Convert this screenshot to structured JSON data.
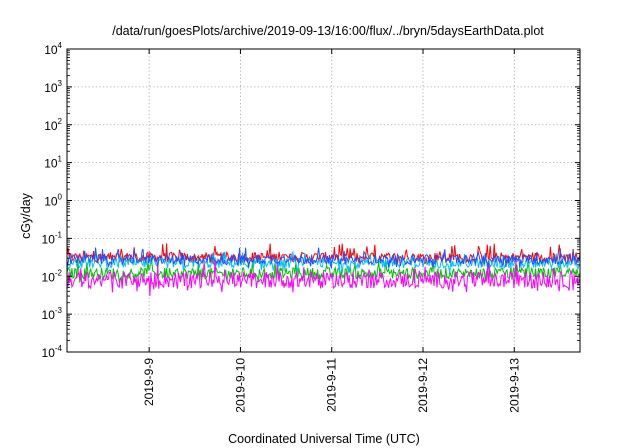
{
  "chart_data": {
    "type": "line",
    "title": "/data/run/goesPlots/archive/2019-09-13/16:00/flux/../bryn/5daysEarthData.plot",
    "xlabel": "Coordinated Universal Time (UTC)",
    "ylabel": "cGy/day",
    "yscale": "log",
    "ylim": [
      0.0001,
      10000
    ],
    "xlim_days": [
      8.1,
      13.72
    ],
    "grid": true,
    "y_ticks": [
      {
        "value": 0.0001,
        "base": "10",
        "exp": "-4"
      },
      {
        "value": 0.001,
        "base": "10",
        "exp": "-3"
      },
      {
        "value": 0.01,
        "base": "10",
        "exp": "-2"
      },
      {
        "value": 0.1,
        "base": "10",
        "exp": "-1"
      },
      {
        "value": 1,
        "base": "10",
        "exp": "0"
      },
      {
        "value": 10,
        "base": "10",
        "exp": "1"
      },
      {
        "value": 100,
        "base": "10",
        "exp": "2"
      },
      {
        "value": 1000,
        "base": "10",
        "exp": "3"
      },
      {
        "value": 10000,
        "base": "10",
        "exp": "4"
      }
    ],
    "x_ticks": [
      {
        "day": 9,
        "label": "2019-9-9"
      },
      {
        "day": 10,
        "label": "2019-9-10"
      },
      {
        "day": 11,
        "label": "2019-9-11"
      },
      {
        "day": 12,
        "label": "2019-9-12"
      },
      {
        "day": 13,
        "label": "2019-9-13"
      }
    ],
    "series": [
      {
        "color": "#ff0000",
        "typical": 0.032,
        "low": 0.02,
        "high": 0.075
      },
      {
        "color": "#00c000",
        "typical": 0.012,
        "low": 0.0065,
        "high": 0.03
      },
      {
        "color": "#00bfff",
        "typical": 0.022,
        "low": 0.012,
        "high": 0.045
      },
      {
        "color": "#2050ff",
        "typical": 0.028,
        "low": 0.016,
        "high": 0.06
      },
      {
        "color": "#ff00ff",
        "typical": 0.008,
        "low": 0.003,
        "high": 0.028
      }
    ]
  }
}
